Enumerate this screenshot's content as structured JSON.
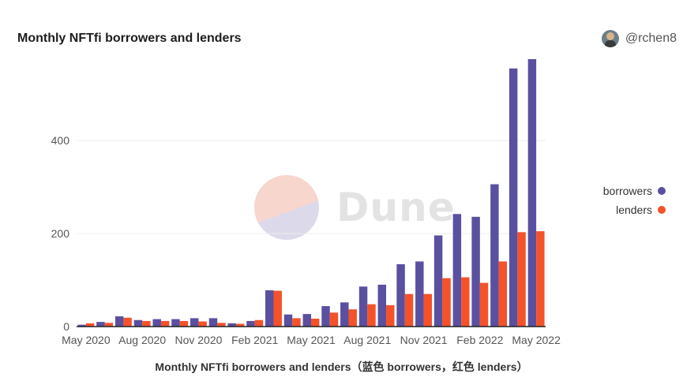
{
  "header": {
    "title": "Monthly NFTfi borrowers and lenders",
    "author": "@rchen8"
  },
  "watermark": {
    "text": "Dune"
  },
  "caption": "Monthly NFTfi borrowers and lenders（蓝色 borrowers，红色 lenders）",
  "colors": {
    "borrowers": "#5a50a0",
    "lenders": "#f5522a"
  },
  "chart_data": {
    "type": "bar",
    "title": "Monthly NFTfi borrowers and lenders",
    "xlabel": "",
    "ylabel": "",
    "ylim": [
      0,
      580
    ],
    "yticks": [
      0,
      200,
      400
    ],
    "grid": true,
    "legend_position": "right",
    "categories": [
      "2020-05",
      "2020-06",
      "2020-07",
      "2020-08",
      "2020-09",
      "2020-10",
      "2020-11",
      "2020-12",
      "2021-01",
      "2021-02",
      "2021-03",
      "2021-04",
      "2021-05",
      "2021-06",
      "2021-07",
      "2021-08",
      "2021-09",
      "2021-10",
      "2021-11",
      "2021-12",
      "2022-01",
      "2022-02",
      "2022-03",
      "2022-04",
      "2022-05"
    ],
    "tick_labels": [
      {
        "category": "2020-05",
        "label": "May 2020"
      },
      {
        "category": "2020-08",
        "label": "Aug 2020"
      },
      {
        "category": "2020-11",
        "label": "Nov 2020"
      },
      {
        "category": "2021-02",
        "label": "Feb 2021"
      },
      {
        "category": "2021-05",
        "label": "May 2021"
      },
      {
        "category": "2021-08",
        "label": "Aug 2021"
      },
      {
        "category": "2021-11",
        "label": "Nov 2021"
      },
      {
        "category": "2022-02",
        "label": "Feb 2022"
      },
      {
        "category": "2022-05",
        "label": "May 2022"
      }
    ],
    "series": [
      {
        "name": "borrowers",
        "values": [
          4,
          10,
          22,
          14,
          16,
          16,
          18,
          18,
          7,
          12,
          78,
          26,
          27,
          44,
          52,
          86,
          90,
          134,
          140,
          196,
          242,
          236,
          306,
          555,
          575
        ]
      },
      {
        "name": "lenders",
        "values": [
          7,
          8,
          19,
          12,
          12,
          12,
          11,
          8,
          6,
          14,
          77,
          18,
          17,
          30,
          37,
          48,
          46,
          70,
          70,
          104,
          106,
          94,
          140,
          203,
          205
        ]
      }
    ]
  }
}
